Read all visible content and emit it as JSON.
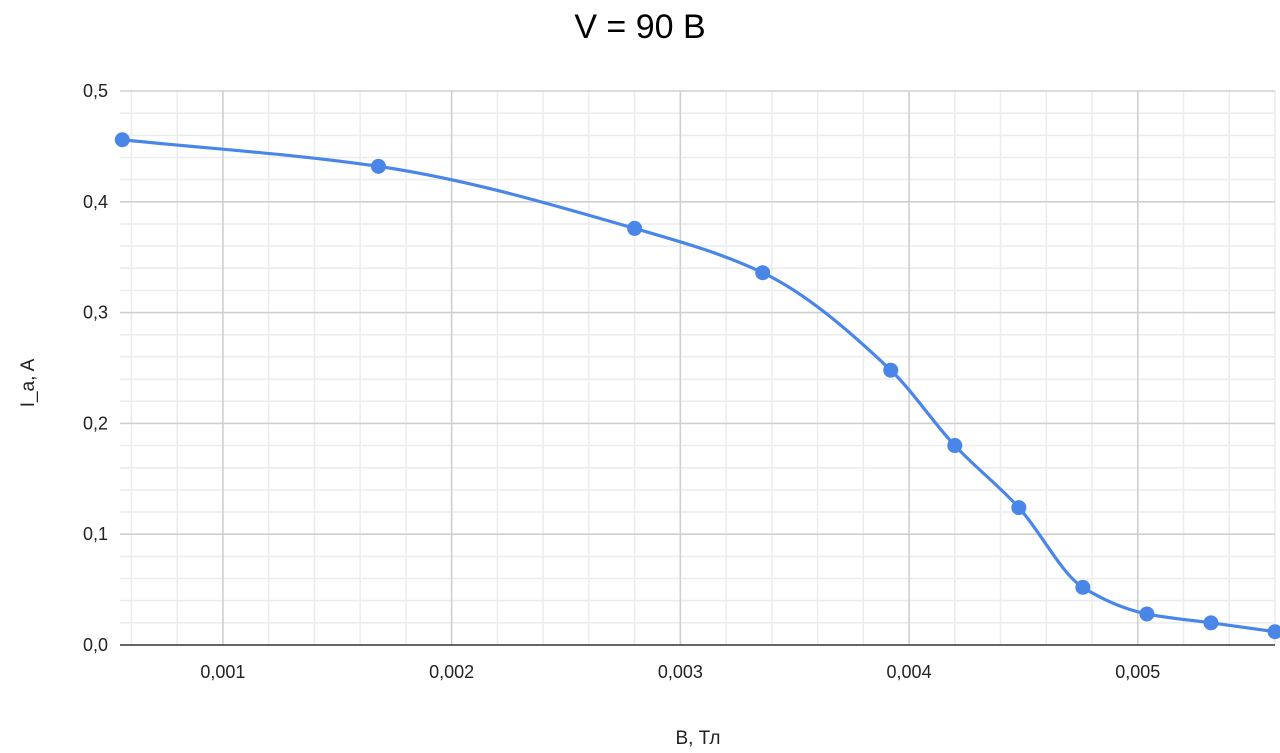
{
  "chart_data": {
    "type": "line",
    "title": "V = 90 В",
    "xlabel": "B, Тл",
    "ylabel": "I_a, A",
    "xlim": [
      0.00055,
      0.0056
    ],
    "ylim": [
      0,
      0.5
    ],
    "x_ticks": [
      0.001,
      0.002,
      0.003,
      0.004,
      0.005
    ],
    "x_tick_labels": [
      "0,001",
      "0,002",
      "0,003",
      "0,004",
      "0,005"
    ],
    "y_ticks": [
      0,
      0.1,
      0.2,
      0.3,
      0.4,
      0.5
    ],
    "y_tick_labels": [
      "0,0",
      "0,1",
      "0,2",
      "0,3",
      "0,4",
      "0,5"
    ],
    "grid": true,
    "minor_grid": true,
    "legend": false,
    "smooth": true,
    "series": [
      {
        "color": "#4a86e8",
        "x": [
          0.00056,
          0.00168,
          0.0028,
          0.00336,
          0.00392,
          0.0042,
          0.00448,
          0.00476,
          0.00504,
          0.00532,
          0.0056
        ],
        "y": [
          0.456,
          0.432,
          0.376,
          0.336,
          0.248,
          0.18,
          0.124,
          0.052,
          0.028,
          0.02,
          0.012
        ]
      }
    ]
  }
}
